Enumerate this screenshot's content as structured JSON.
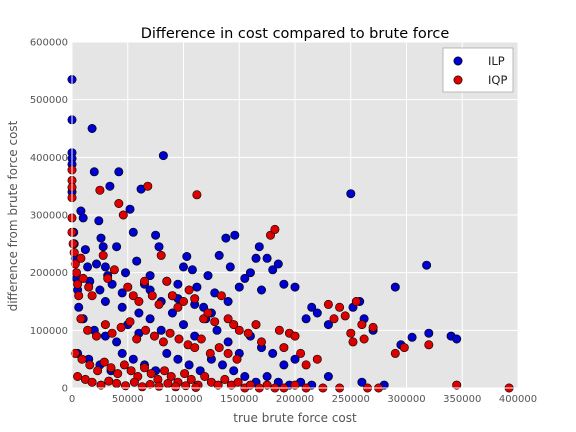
{
  "chart_data": {
    "type": "scatter",
    "title": "Difference in cost compared to brute force",
    "xlabel": "true brute force cost",
    "ylabel": "difference from brute force cost",
    "xlim": [
      0,
      400000
    ],
    "ylim": [
      0,
      600000
    ],
    "xticks": [
      "0",
      "50000",
      "100000",
      "150000",
      "200000",
      "250000",
      "300000",
      "350000",
      "400000"
    ],
    "yticks": [
      "0",
      "100000",
      "200000",
      "300000",
      "400000",
      "500000",
      "600000"
    ],
    "grid": true,
    "legend": "top-right",
    "colors": {
      "ILP": "#0000cc",
      "IQP": "#dd0000",
      "plot_bg": "#e5e5e5",
      "grid": "#ffffff"
    },
    "series": [
      {
        "name": "ILP",
        "points": [
          [
            0,
            535000
          ],
          [
            0,
            465000
          ],
          [
            0,
            408000
          ],
          [
            0,
            398000
          ],
          [
            0,
            388000
          ],
          [
            0,
            340000
          ],
          [
            1500,
            270000
          ],
          [
            2000,
            250000
          ],
          [
            3000,
            225000
          ],
          [
            4000,
            190000
          ],
          [
            5000,
            170000
          ],
          [
            6000,
            140000
          ],
          [
            8000,
            307000
          ],
          [
            10000,
            295000
          ],
          [
            12000,
            240000
          ],
          [
            14000,
            210000
          ],
          [
            16000,
            185000
          ],
          [
            18000,
            450000
          ],
          [
            20000,
            375000
          ],
          [
            22000,
            215000
          ],
          [
            24000,
            290000
          ],
          [
            26000,
            260000
          ],
          [
            28000,
            245000
          ],
          [
            30000,
            210000
          ],
          [
            32000,
            195000
          ],
          [
            34000,
            350000
          ],
          [
            36000,
            180000
          ],
          [
            40000,
            245000
          ],
          [
            42000,
            375000
          ],
          [
            45000,
            165000
          ],
          [
            48000,
            200000
          ],
          [
            52000,
            310000
          ],
          [
            55000,
            270000
          ],
          [
            58000,
            220000
          ],
          [
            62000,
            345000
          ],
          [
            65000,
            180000
          ],
          [
            70000,
            195000
          ],
          [
            75000,
            265000
          ],
          [
            78000,
            245000
          ],
          [
            82000,
            403000
          ],
          [
            85000,
            185000
          ],
          [
            90000,
            160000
          ],
          [
            95000,
            180000
          ],
          [
            100000,
            210000
          ],
          [
            103000,
            228000
          ],
          [
            108000,
            205000
          ],
          [
            112000,
            175000
          ],
          [
            118000,
            140000
          ],
          [
            122000,
            195000
          ],
          [
            128000,
            165000
          ],
          [
            132000,
            230000
          ],
          [
            138000,
            260000
          ],
          [
            142000,
            210000
          ],
          [
            146000,
            265000
          ],
          [
            150000,
            175000
          ],
          [
            155000,
            190000
          ],
          [
            160000,
            200000
          ],
          [
            165000,
            225000
          ],
          [
            168000,
            245000
          ],
          [
            170000,
            170000
          ],
          [
            175000,
            225000
          ],
          [
            180000,
            205000
          ],
          [
            185000,
            215000
          ],
          [
            190000,
            180000
          ],
          [
            200000,
            175000
          ],
          [
            210000,
            120000
          ],
          [
            215000,
            140000
          ],
          [
            220000,
            130000
          ],
          [
            230000,
            110000
          ],
          [
            250000,
            337000
          ],
          [
            252000,
            140000
          ],
          [
            258000,
            150000
          ],
          [
            262000,
            120000
          ],
          [
            270000,
            100000
          ],
          [
            290000,
            175000
          ],
          [
            295000,
            75000
          ],
          [
            305000,
            88000
          ],
          [
            318000,
            213000
          ],
          [
            320000,
            95000
          ],
          [
            340000,
            90000
          ],
          [
            345000,
            85000
          ],
          [
            10000,
            120000
          ],
          [
            20000,
            100000
          ],
          [
            30000,
            90000
          ],
          [
            40000,
            80000
          ],
          [
            50000,
            110000
          ],
          [
            60000,
            95000
          ],
          [
            70000,
            120000
          ],
          [
            80000,
            100000
          ],
          [
            90000,
            130000
          ],
          [
            100000,
            110000
          ],
          [
            110000,
            90000
          ],
          [
            120000,
            120000
          ],
          [
            130000,
            100000
          ],
          [
            140000,
            80000
          ],
          [
            150000,
            60000
          ],
          [
            160000,
            90000
          ],
          [
            170000,
            70000
          ],
          [
            180000,
            60000
          ],
          [
            190000,
            40000
          ],
          [
            200000,
            50000
          ],
          [
            5000,
            60000
          ],
          [
            15000,
            50000
          ],
          [
            25000,
            40000
          ],
          [
            35000,
            30000
          ],
          [
            45000,
            60000
          ],
          [
            55000,
            50000
          ],
          [
            65000,
            40000
          ],
          [
            75000,
            30000
          ],
          [
            85000,
            60000
          ],
          [
            95000,
            50000
          ],
          [
            105000,
            40000
          ],
          [
            115000,
            30000
          ],
          [
            125000,
            50000
          ],
          [
            135000,
            40000
          ],
          [
            145000,
            30000
          ],
          [
            155000,
            20000
          ],
          [
            165000,
            10000
          ],
          [
            175000,
            20000
          ],
          [
            185000,
            10000
          ],
          [
            195000,
            5000
          ],
          [
            205000,
            10000
          ],
          [
            215000,
            5000
          ],
          [
            230000,
            20000
          ],
          [
            260000,
            10000
          ],
          [
            280000,
            5000
          ],
          [
            30000,
            150000
          ],
          [
            45000,
            140000
          ],
          [
            60000,
            130000
          ],
          [
            80000,
            150000
          ],
          [
            95000,
            155000
          ],
          [
            110000,
            145000
          ],
          [
            125000,
            130000
          ],
          [
            140000,
            150000
          ],
          [
            25000,
            170000
          ],
          [
            70000,
            170000
          ]
        ]
      },
      {
        "name": "IQP",
        "points": [
          [
            0,
            378000
          ],
          [
            0,
            360000
          ],
          [
            0,
            348000
          ],
          [
            0,
            330000
          ],
          [
            0,
            295000
          ],
          [
            0,
            270000
          ],
          [
            1000,
            250000
          ],
          [
            2000,
            235000
          ],
          [
            3000,
            215000
          ],
          [
            4000,
            200000
          ],
          [
            5000,
            180000
          ],
          [
            6000,
            160000
          ],
          [
            8000,
            225000
          ],
          [
            10000,
            190000
          ],
          [
            15000,
            175000
          ],
          [
            18000,
            160000
          ],
          [
            25000,
            343000
          ],
          [
            28000,
            230000
          ],
          [
            32000,
            190000
          ],
          [
            38000,
            205000
          ],
          [
            42000,
            320000
          ],
          [
            46000,
            300000
          ],
          [
            50000,
            175000
          ],
          [
            55000,
            160000
          ],
          [
            60000,
            150000
          ],
          [
            65000,
            185000
          ],
          [
            68000,
            350000
          ],
          [
            72000,
            160000
          ],
          [
            78000,
            145000
          ],
          [
            80000,
            230000
          ],
          [
            85000,
            185000
          ],
          [
            90000,
            160000
          ],
          [
            95000,
            140000
          ],
          [
            100000,
            150000
          ],
          [
            105000,
            170000
          ],
          [
            110000,
            155000
          ],
          [
            112000,
            335000
          ],
          [
            118000,
            120000
          ],
          [
            122000,
            130000
          ],
          [
            128000,
            115000
          ],
          [
            134000,
            160000
          ],
          [
            140000,
            120000
          ],
          [
            145000,
            110000
          ],
          [
            150000,
            100000
          ],
          [
            158000,
            95000
          ],
          [
            165000,
            110000
          ],
          [
            170000,
            80000
          ],
          [
            178000,
            265000
          ],
          [
            182000,
            275000
          ],
          [
            186000,
            100000
          ],
          [
            190000,
            70000
          ],
          [
            195000,
            95000
          ],
          [
            200000,
            90000
          ],
          [
            205000,
            60000
          ],
          [
            210000,
            40000
          ],
          [
            220000,
            50000
          ],
          [
            230000,
            145000
          ],
          [
            235000,
            120000
          ],
          [
            240000,
            140000
          ],
          [
            245000,
            125000
          ],
          [
            250000,
            95000
          ],
          [
            252000,
            80000
          ],
          [
            255000,
            150000
          ],
          [
            260000,
            110000
          ],
          [
            262000,
            85000
          ],
          [
            270000,
            105000
          ],
          [
            290000,
            60000
          ],
          [
            298000,
            70000
          ],
          [
            320000,
            75000
          ],
          [
            345000,
            5000
          ],
          [
            392000,
            0
          ],
          [
            8000,
            120000
          ],
          [
            14000,
            100000
          ],
          [
            22000,
            90000
          ],
          [
            30000,
            110000
          ],
          [
            36000,
            95000
          ],
          [
            44000,
            105000
          ],
          [
            52000,
            115000
          ],
          [
            58000,
            85000
          ],
          [
            66000,
            100000
          ],
          [
            74000,
            90000
          ],
          [
            82000,
            80000
          ],
          [
            88000,
            95000
          ],
          [
            96000,
            85000
          ],
          [
            104000,
            75000
          ],
          [
            110000,
            70000
          ],
          [
            116000,
            85000
          ],
          [
            124000,
            60000
          ],
          [
            132000,
            70000
          ],
          [
            140000,
            60000
          ],
          [
            148000,
            50000
          ],
          [
            3000,
            60000
          ],
          [
            9000,
            50000
          ],
          [
            16000,
            40000
          ],
          [
            23000,
            30000
          ],
          [
            29000,
            45000
          ],
          [
            35000,
            35000
          ],
          [
            41000,
            25000
          ],
          [
            47000,
            40000
          ],
          [
            53000,
            30000
          ],
          [
            59000,
            20000
          ],
          [
            65000,
            35000
          ],
          [
            71000,
            25000
          ],
          [
            77000,
            15000
          ],
          [
            83000,
            30000
          ],
          [
            89000,
            20000
          ],
          [
            95000,
            10000
          ],
          [
            101000,
            25000
          ],
          [
            107000,
            15000
          ],
          [
            113000,
            5000
          ],
          [
            119000,
            20000
          ],
          [
            125000,
            10000
          ],
          [
            131000,
            5000
          ],
          [
            137000,
            15000
          ],
          [
            143000,
            5000
          ],
          [
            149000,
            10000
          ],
          [
            155000,
            0
          ],
          [
            160000,
            5000
          ],
          [
            168000,
            0
          ],
          [
            175000,
            5000
          ],
          [
            182000,
            0
          ],
          [
            190000,
            0
          ],
          [
            200000,
            5000
          ],
          [
            210000,
            0
          ],
          [
            225000,
            0
          ],
          [
            240000,
            0
          ],
          [
            265000,
            0
          ],
          [
            275000,
            0
          ],
          [
            5000,
            20000
          ],
          [
            12000,
            15000
          ],
          [
            18000,
            10000
          ],
          [
            26000,
            5000
          ],
          [
            33000,
            12000
          ],
          [
            40000,
            8000
          ],
          [
            48000,
            4000
          ],
          [
            56000,
            10000
          ],
          [
            63000,
            2000
          ],
          [
            70000,
            6000
          ],
          [
            78000,
            3000
          ],
          [
            86000,
            8000
          ],
          [
            93000,
            2000
          ],
          [
            102000,
            4000
          ],
          [
            111000,
            1000
          ]
        ]
      }
    ]
  }
}
